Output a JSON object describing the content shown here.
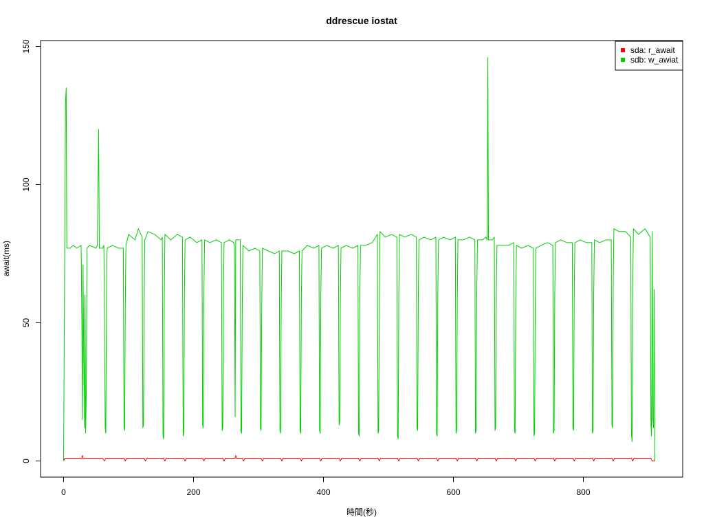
{
  "chart_data": {
    "type": "line",
    "title": "ddrescue iostat",
    "xlabel": "時間(秒)",
    "ylabel": "await(ms)",
    "xlim": [
      0,
      910
    ],
    "ylim": [
      0,
      150
    ],
    "xticks": [
      "0",
      "200",
      "400",
      "600",
      "800"
    ],
    "yticks": [
      "0",
      "50",
      "100",
      "150"
    ],
    "grid": false,
    "legend_position": "top-right",
    "series": [
      {
        "name": "sda: r_await",
        "color": "#ff0000",
        "points": [
          [
            0,
            0
          ],
          [
            2,
            1
          ],
          [
            10,
            1
          ],
          [
            20,
            1
          ],
          [
            28,
            1
          ],
          [
            29,
            2
          ],
          [
            30,
            1
          ],
          [
            40,
            1
          ],
          [
            60,
            1
          ],
          [
            63,
            0
          ],
          [
            65,
            1
          ],
          [
            93,
            1
          ],
          [
            95,
            0
          ],
          [
            97,
            1
          ],
          [
            124,
            1
          ],
          [
            126,
            0
          ],
          [
            128,
            1
          ],
          [
            154,
            1
          ],
          [
            156,
            0
          ],
          [
            158,
            1
          ],
          [
            185,
            1
          ],
          [
            187,
            0
          ],
          [
            189,
            1
          ],
          [
            214,
            1
          ],
          [
            216,
            0
          ],
          [
            218,
            1
          ],
          [
            245,
            1
          ],
          [
            247,
            0
          ],
          [
            249,
            1
          ],
          [
            264,
            1
          ],
          [
            265,
            2
          ],
          [
            266,
            1
          ],
          [
            275,
            1
          ],
          [
            277,
            0
          ],
          [
            279,
            1
          ],
          [
            304,
            1
          ],
          [
            306,
            0
          ],
          [
            308,
            1
          ],
          [
            334,
            1
          ],
          [
            336,
            0
          ],
          [
            338,
            1
          ],
          [
            364,
            1
          ],
          [
            366,
            0
          ],
          [
            368,
            1
          ],
          [
            394,
            1
          ],
          [
            396,
            0
          ],
          [
            398,
            1
          ],
          [
            424,
            1
          ],
          [
            426,
            0
          ],
          [
            428,
            1
          ],
          [
            454,
            1
          ],
          [
            456,
            0
          ],
          [
            458,
            1
          ],
          [
            484,
            1
          ],
          [
            486,
            0
          ],
          [
            488,
            1
          ],
          [
            514,
            1
          ],
          [
            516,
            0
          ],
          [
            518,
            1
          ],
          [
            544,
            1
          ],
          [
            546,
            0
          ],
          [
            548,
            1
          ],
          [
            574,
            1
          ],
          [
            576,
            0
          ],
          [
            578,
            1
          ],
          [
            604,
            1
          ],
          [
            606,
            0
          ],
          [
            608,
            1
          ],
          [
            634,
            1
          ],
          [
            636,
            0
          ],
          [
            638,
            1
          ],
          [
            664,
            1
          ],
          [
            666,
            0
          ],
          [
            668,
            1
          ],
          [
            694,
            1
          ],
          [
            696,
            0
          ],
          [
            698,
            1
          ],
          [
            724,
            1
          ],
          [
            726,
            0
          ],
          [
            728,
            1
          ],
          [
            754,
            1
          ],
          [
            756,
            0
          ],
          [
            758,
            1
          ],
          [
            784,
            1
          ],
          [
            786,
            0
          ],
          [
            788,
            1
          ],
          [
            814,
            1
          ],
          [
            816,
            0
          ],
          [
            818,
            1
          ],
          [
            844,
            1
          ],
          [
            846,
            0
          ],
          [
            848,
            1
          ],
          [
            874,
            1
          ],
          [
            876,
            0
          ],
          [
            878,
            1
          ],
          [
            904,
            1
          ],
          [
            906,
            0
          ],
          [
            910,
            0
          ]
        ]
      },
      {
        "name": "sdb: w_awiat",
        "color": "#00cd00",
        "points": [
          [
            0,
            0
          ],
          [
            3,
            130
          ],
          [
            4,
            135
          ],
          [
            5,
            77
          ],
          [
            10,
            77
          ],
          [
            15,
            78
          ],
          [
            20,
            77
          ],
          [
            27,
            78
          ],
          [
            28,
            52
          ],
          [
            29,
            15
          ],
          [
            30,
            71
          ],
          [
            31,
            36
          ],
          [
            32,
            12
          ],
          [
            33,
            60
          ],
          [
            34,
            10
          ],
          [
            35,
            26
          ],
          [
            36,
            77
          ],
          [
            40,
            78
          ],
          [
            50,
            77
          ],
          [
            52,
            78
          ],
          [
            54,
            120
          ],
          [
            55,
            77
          ],
          [
            60,
            77
          ],
          [
            62,
            78
          ],
          [
            63,
            54
          ],
          [
            64,
            12
          ],
          [
            65,
            10
          ],
          [
            66,
            60
          ],
          [
            67,
            77
          ],
          [
            75,
            78
          ],
          [
            85,
            77
          ],
          [
            92,
            77
          ],
          [
            93,
            12
          ],
          [
            94,
            11
          ],
          [
            95,
            57
          ],
          [
            96,
            78
          ],
          [
            100,
            82
          ],
          [
            110,
            80
          ],
          [
            115,
            84
          ],
          [
            121,
            81
          ],
          [
            122,
            12
          ],
          [
            123,
            13
          ],
          [
            124,
            58
          ],
          [
            125,
            80
          ],
          [
            130,
            83
          ],
          [
            140,
            82
          ],
          [
            150,
            80
          ],
          [
            152,
            81
          ],
          [
            153,
            9
          ],
          [
            154,
            8
          ],
          [
            155,
            59
          ],
          [
            156,
            82
          ],
          [
            165,
            80
          ],
          [
            175,
            82
          ],
          [
            183,
            81
          ],
          [
            184,
            9
          ],
          [
            185,
            10
          ],
          [
            186,
            61
          ],
          [
            187,
            80
          ],
          [
            195,
            81
          ],
          [
            205,
            79
          ],
          [
            213,
            80
          ],
          [
            214,
            13
          ],
          [
            215,
            12
          ],
          [
            216,
            61
          ],
          [
            217,
            80
          ],
          [
            225,
            79
          ],
          [
            235,
            80
          ],
          [
            243,
            79
          ],
          [
            244,
            11
          ],
          [
            245,
            12
          ],
          [
            246,
            60
          ],
          [
            247,
            79
          ],
          [
            255,
            80
          ],
          [
            262,
            79
          ],
          [
            263,
            77
          ],
          [
            264,
            16
          ],
          [
            265,
            80
          ],
          [
            272,
            80
          ],
          [
            273,
            11
          ],
          [
            274,
            10
          ],
          [
            275,
            56
          ],
          [
            276,
            78
          ],
          [
            285,
            76
          ],
          [
            295,
            77
          ],
          [
            302,
            76
          ],
          [
            303,
            12
          ],
          [
            304,
            11
          ],
          [
            305,
            56
          ],
          [
            306,
            77
          ],
          [
            315,
            76
          ],
          [
            325,
            75
          ],
          [
            332,
            76
          ],
          [
            333,
            11
          ],
          [
            334,
            10
          ],
          [
            335,
            58
          ],
          [
            336,
            76
          ],
          [
            345,
            76
          ],
          [
            355,
            75
          ],
          [
            363,
            76
          ],
          [
            364,
            11
          ],
          [
            365,
            10
          ],
          [
            366,
            60
          ],
          [
            367,
            76
          ],
          [
            375,
            78
          ],
          [
            385,
            77
          ],
          [
            393,
            78
          ],
          [
            394,
            11
          ],
          [
            395,
            10
          ],
          [
            396,
            61
          ],
          [
            397,
            77
          ],
          [
            405,
            78
          ],
          [
            415,
            77
          ],
          [
            423,
            78
          ],
          [
            424,
            13
          ],
          [
            425,
            14
          ],
          [
            426,
            58
          ],
          [
            427,
            77
          ],
          [
            435,
            78
          ],
          [
            445,
            77
          ],
          [
            453,
            78
          ],
          [
            454,
            10
          ],
          [
            455,
            9
          ],
          [
            456,
            60
          ],
          [
            457,
            78
          ],
          [
            465,
            78
          ],
          [
            475,
            79
          ],
          [
            483,
            82
          ],
          [
            484,
            10
          ],
          [
            485,
            11
          ],
          [
            486,
            58
          ],
          [
            487,
            83
          ],
          [
            495,
            81
          ],
          [
            505,
            82
          ],
          [
            513,
            81
          ],
          [
            514,
            9
          ],
          [
            515,
            8
          ],
          [
            516,
            60
          ],
          [
            517,
            82
          ],
          [
            525,
            81
          ],
          [
            535,
            82
          ],
          [
            543,
            81
          ],
          [
            544,
            12
          ],
          [
            545,
            11
          ],
          [
            546,
            61
          ],
          [
            547,
            80
          ],
          [
            555,
            81
          ],
          [
            565,
            80
          ],
          [
            573,
            81
          ],
          [
            574,
            10
          ],
          [
            575,
            9
          ],
          [
            576,
            60
          ],
          [
            577,
            80
          ],
          [
            585,
            81
          ],
          [
            595,
            80
          ],
          [
            603,
            81
          ],
          [
            604,
            10
          ],
          [
            605,
            11
          ],
          [
            606,
            59
          ],
          [
            607,
            80
          ],
          [
            615,
            80
          ],
          [
            625,
            81
          ],
          [
            633,
            80
          ],
          [
            634,
            10
          ],
          [
            635,
            11
          ],
          [
            636,
            61
          ],
          [
            637,
            80
          ],
          [
            645,
            80
          ],
          [
            650,
            81
          ],
          [
            652,
            80
          ],
          [
            653,
            146
          ],
          [
            654,
            80
          ],
          [
            660,
            80
          ],
          [
            663,
            81
          ],
          [
            664,
            11
          ],
          [
            665,
            12
          ],
          [
            666,
            61
          ],
          [
            667,
            78
          ],
          [
            675,
            78
          ],
          [
            685,
            78
          ],
          [
            693,
            79
          ],
          [
            694,
            11
          ],
          [
            695,
            10
          ],
          [
            696,
            58
          ],
          [
            697,
            78
          ],
          [
            705,
            77
          ],
          [
            715,
            78
          ],
          [
            723,
            77
          ],
          [
            724,
            9
          ],
          [
            725,
            10
          ],
          [
            726,
            59
          ],
          [
            727,
            77
          ],
          [
            735,
            78
          ],
          [
            745,
            79
          ],
          [
            753,
            78
          ],
          [
            754,
            10
          ],
          [
            755,
            11
          ],
          [
            756,
            59
          ],
          [
            757,
            79
          ],
          [
            765,
            80
          ],
          [
            775,
            79
          ],
          [
            783,
            79
          ],
          [
            784,
            12
          ],
          [
            785,
            11
          ],
          [
            786,
            62
          ],
          [
            787,
            79
          ],
          [
            795,
            80
          ],
          [
            805,
            79
          ],
          [
            813,
            79
          ],
          [
            814,
            10
          ],
          [
            815,
            11
          ],
          [
            816,
            61
          ],
          [
            817,
            80
          ],
          [
            825,
            79
          ],
          [
            835,
            80
          ],
          [
            843,
            80
          ],
          [
            844,
            13
          ],
          [
            845,
            12
          ],
          [
            846,
            65
          ],
          [
            847,
            84
          ],
          [
            855,
            83
          ],
          [
            865,
            83
          ],
          [
            873,
            81
          ],
          [
            874,
            10
          ],
          [
            875,
            7
          ],
          [
            876,
            62
          ],
          [
            877,
            84
          ],
          [
            885,
            82
          ],
          [
            895,
            84
          ],
          [
            903,
            81
          ],
          [
            904,
            13
          ],
          [
            905,
            9
          ],
          [
            906,
            83
          ],
          [
            907,
            15
          ],
          [
            908,
            12
          ],
          [
            909,
            62
          ],
          [
            910,
            0
          ]
        ]
      }
    ]
  }
}
